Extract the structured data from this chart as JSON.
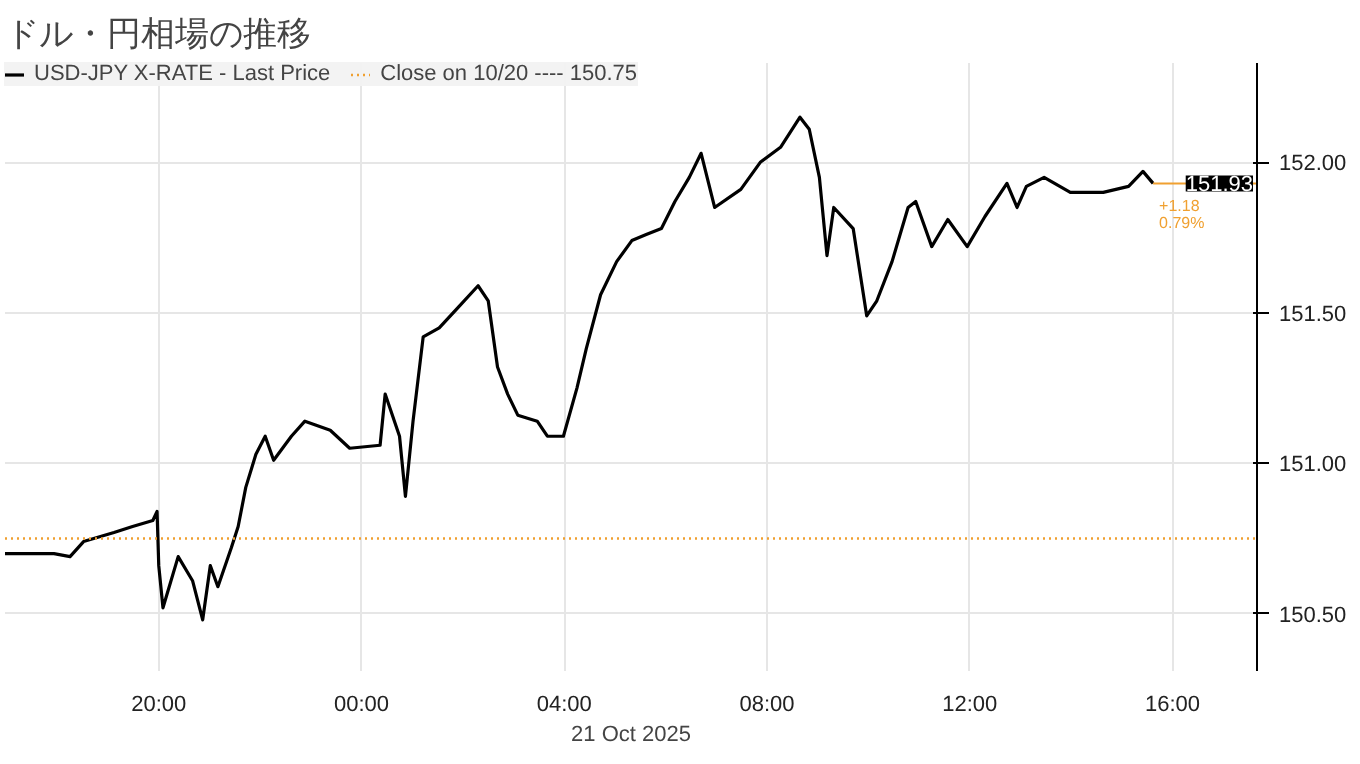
{
  "chart_data": {
    "type": "line",
    "title": "ドル・円相場の推移",
    "xlabel": "21 Oct 2025",
    "x": [
      "2025-10-20T16:58",
      "2025-10-20T17:56",
      "2025-10-20T18:15",
      "2025-10-20T18:31",
      "2025-10-20T19:07",
      "2025-10-20T19:29",
      "2025-10-20T19:53",
      "2025-10-20T19:58",
      "2025-10-20T20:00",
      "2025-10-20T20:05",
      "2025-10-20T20:23",
      "2025-10-20T20:40",
      "2025-10-20T20:52",
      "2025-10-20T21:01",
      "2025-10-20T21:10",
      "2025-10-20T21:26",
      "2025-10-20T21:34",
      "2025-10-20T21:43",
      "2025-10-20T21:55",
      "2025-10-20T22:06",
      "2025-10-20T22:16",
      "2025-10-20T22:37",
      "2025-10-20T22:53",
      "2025-10-20T23:23",
      "2025-10-20T23:46",
      "2025-10-21T00:22",
      "2025-10-21T00:28",
      "2025-10-21T00:45",
      "2025-10-21T00:52",
      "2025-10-21T01:01",
      "2025-10-21T01:13",
      "2025-10-21T01:32",
      "2025-10-21T01:55",
      "2025-10-21T02:18",
      "2025-10-21T02:30",
      "2025-10-21T02:41",
      "2025-10-21T02:53",
      "2025-10-21T03:05",
      "2025-10-21T03:28",
      "2025-10-21T03:40",
      "2025-10-21T03:59",
      "2025-10-21T04:15",
      "2025-10-21T04:26",
      "2025-10-21T04:43",
      "2025-10-21T05:02",
      "2025-10-21T05:20",
      "2025-10-21T05:37",
      "2025-10-21T05:55",
      "2025-10-21T06:11",
      "2025-10-21T06:28",
      "2025-10-21T06:42",
      "2025-10-21T06:58",
      "2025-10-21T07:29",
      "2025-10-21T07:52",
      "2025-10-21T08:16",
      "2025-10-21T08:39",
      "2025-10-21T08:50",
      "2025-10-21T09:02",
      "2025-10-21T09:11",
      "2025-10-21T09:19",
      "2025-10-21T09:42",
      "2025-10-21T09:58",
      "2025-10-21T10:10",
      "2025-10-21T10:28",
      "2025-10-21T10:47",
      "2025-10-21T10:56",
      "2025-10-21T11:15",
      "2025-10-21T11:34",
      "2025-10-21T11:57",
      "2025-10-21T12:18",
      "2025-10-21T12:44",
      "2025-10-21T12:56",
      "2025-10-21T13:07",
      "2025-10-21T13:28",
      "2025-10-21T13:59",
      "2025-10-21T14:38",
      "2025-10-21T15:08",
      "2025-10-21T15:25",
      "2025-10-21T15:37"
    ],
    "series": [
      {
        "name": "USD-JPY X-RATE - Last Price",
        "color": "#000000",
        "values": [
          150.7,
          150.7,
          150.69,
          150.74,
          150.77,
          150.79,
          150.81,
          150.84,
          150.66,
          150.52,
          150.69,
          150.61,
          150.48,
          150.66,
          150.59,
          150.72,
          150.79,
          150.92,
          151.03,
          151.09,
          151.01,
          151.09,
          151.14,
          151.11,
          151.05,
          151.06,
          151.23,
          151.09,
          150.89,
          151.14,
          151.42,
          151.45,
          151.52,
          151.59,
          151.54,
          151.32,
          151.23,
          151.16,
          151.14,
          151.09,
          151.09,
          151.25,
          151.38,
          151.56,
          151.67,
          151.74,
          151.76,
          151.78,
          151.87,
          151.95,
          152.03,
          151.85,
          151.91,
          152.0,
          152.05,
          152.15,
          152.11,
          151.95,
          151.69,
          151.85,
          151.78,
          151.49,
          151.54,
          151.67,
          151.85,
          151.87,
          151.72,
          151.81,
          151.72,
          151.82,
          151.93,
          151.85,
          151.92,
          151.95,
          151.9,
          151.9,
          151.92,
          151.97,
          151.93
        ]
      }
    ],
    "xlim": [
      "2025-10-20T16:58",
      "2025-10-21T17:40"
    ],
    "xticks": [
      {
        "value": "2025-10-20T20:00",
        "label": "20:00"
      },
      {
        "value": "2025-10-21T00:00",
        "label": "00:00"
      },
      {
        "value": "2025-10-21T04:00",
        "label": "04:00"
      },
      {
        "value": "2025-10-21T08:00",
        "label": "08:00"
      },
      {
        "value": "2025-10-21T12:00",
        "label": "12:00"
      },
      {
        "value": "2025-10-21T16:00",
        "label": "16:00"
      }
    ],
    "ylim": [
      150.31,
      152.33
    ],
    "yticks": [
      {
        "value": 150.5,
        "label": "150.50"
      },
      {
        "value": 151,
        "label": "151.00"
      },
      {
        "value": 151.5,
        "label": "151.50"
      },
      {
        "value": 152,
        "label": "152.00"
      }
    ],
    "ref_lines": [
      {
        "axis": "y",
        "value": 150.75,
        "label": "Close on 10/20 ---- 150.75",
        "color": "#f0a030",
        "line_style": "dotted"
      }
    ],
    "annotations": [
      {
        "text": "151.93",
        "x": "2025-10-21T15:37",
        "y": 151.93
      },
      {
        "text": "+1.18",
        "x": "2025-10-21T15:37",
        "y": 151.93
      },
      {
        "text": "0.79%",
        "x": "2025-10-21T15:37",
        "y": 151.93
      }
    ],
    "grid": true,
    "legend": "top left",
    "marker": "none",
    "line_style": "solid"
  }
}
